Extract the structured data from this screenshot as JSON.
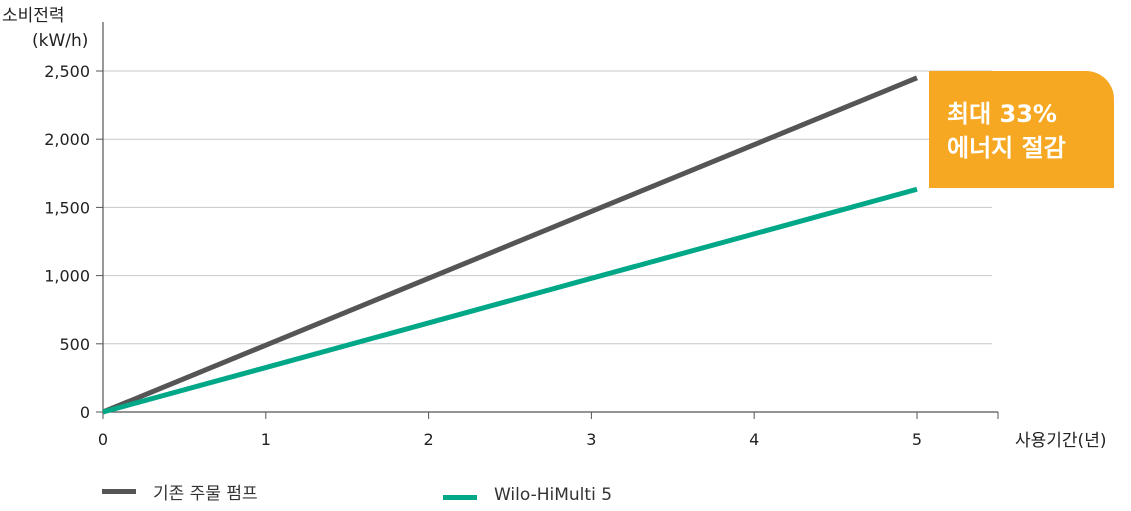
{
  "chart_data": {
    "type": "line",
    "ylabel_line1": "소비전력",
    "ylabel_line2": "(kW/h)",
    "xlabel": "사용기간(년)",
    "x": [
      0,
      1,
      2,
      3,
      4,
      5
    ],
    "x_ticks": [
      "0",
      "1",
      "2",
      "3",
      "4",
      "5"
    ],
    "y_ticks": [
      "0",
      "500",
      "1,000",
      "1,500",
      "2,000",
      "2,500"
    ],
    "xlim": [
      0,
      5.5
    ],
    "ylim": [
      0,
      2500
    ],
    "grid": "horizontal",
    "series": [
      {
        "name": "기존 주물 펌프",
        "color": "#555555",
        "values": [
          0,
          490,
          980,
          1470,
          1960,
          2450
        ]
      },
      {
        "name": "Wilo-HiMulti 5",
        "color": "#00a887",
        "values": [
          0,
          326,
          653,
          980,
          1306,
          1633
        ]
      }
    ],
    "annotation": {
      "line1": "최대 33%",
      "line2": "에너지 절감",
      "color": "#f7a823"
    }
  }
}
